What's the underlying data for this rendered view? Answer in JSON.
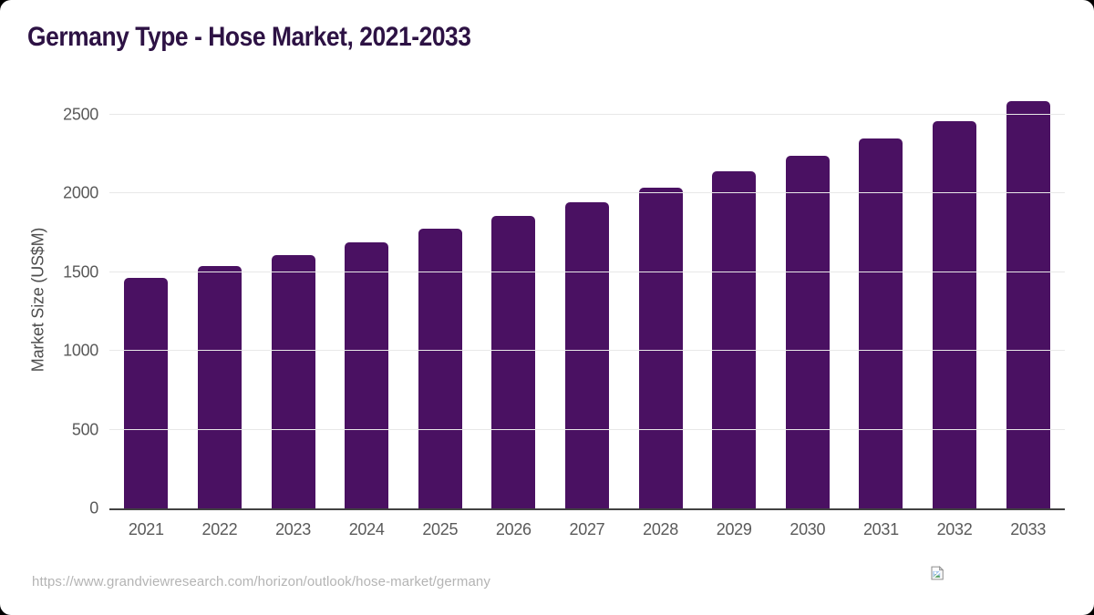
{
  "chart_data": {
    "type": "bar",
    "title": "Germany Type - Hose Market, 2021-2033",
    "categories": [
      "2021",
      "2022",
      "2023",
      "2024",
      "2025",
      "2026",
      "2027",
      "2028",
      "2029",
      "2030",
      "2031",
      "2032",
      "2033"
    ],
    "values": [
      1465,
      1540,
      1610,
      1690,
      1775,
      1860,
      1945,
      2035,
      2140,
      2240,
      2350,
      2460,
      2585
    ],
    "xlabel": "",
    "ylabel": "Market Size (US$M)",
    "yticks": [
      0,
      500,
      1000,
      1500,
      2000,
      2500
    ],
    "ylim": [
      0,
      2650
    ],
    "grid": true,
    "legend": false,
    "bar_color": "#4a1162"
  },
  "footer": {
    "url": "https://www.grandviewresearch.com/horizon/outlook/hose-market/germany",
    "broken_image_icon": "broken-image-icon"
  },
  "colors": {
    "title": "#2d1244",
    "bar": "#4a1162",
    "tick_label": "#5a5a5a",
    "axis_line": "#424242",
    "gridline": "#e8e8e8",
    "url_text": "#b4b4b4",
    "card_bg": "#ffffff",
    "page_bg": "#000000"
  }
}
